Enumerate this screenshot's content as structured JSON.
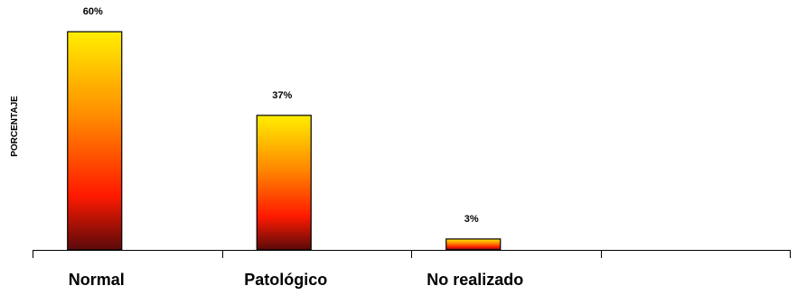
{
  "chart_data": {
    "type": "bar",
    "title": "",
    "xlabel": "",
    "ylabel": "PORCENTAJE",
    "categories": [
      "Normal",
      "Patológico",
      "No realizado",
      ""
    ],
    "values": [
      60,
      37,
      3,
      null
    ],
    "data_labels": [
      "60%",
      "37%",
      "3%",
      ""
    ],
    "ylim": [
      0,
      65
    ],
    "grid": false,
    "legend": "none",
    "colors": {
      "gradient_top": "#ffee00",
      "gradient_mid": "#ff8800",
      "gradient_red": "#ff1a00",
      "gradient_bottom": "#5a0a0a",
      "bar_border": "#000000",
      "axis": "#000000"
    }
  }
}
